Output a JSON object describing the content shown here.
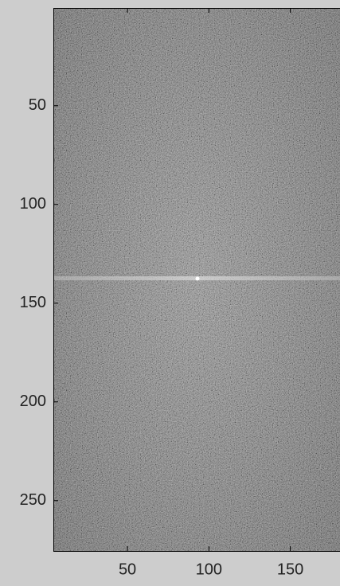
{
  "chart_data": {
    "type": "image",
    "colormap": "gray",
    "y_direction": "reverse",
    "xlim": [
      4.5,
      180.5
    ],
    "ylim": [
      0.5,
      275.5
    ],
    "xticks": [
      50,
      100,
      150
    ],
    "yticks": [
      50,
      100,
      150,
      200,
      250
    ]
  }
}
